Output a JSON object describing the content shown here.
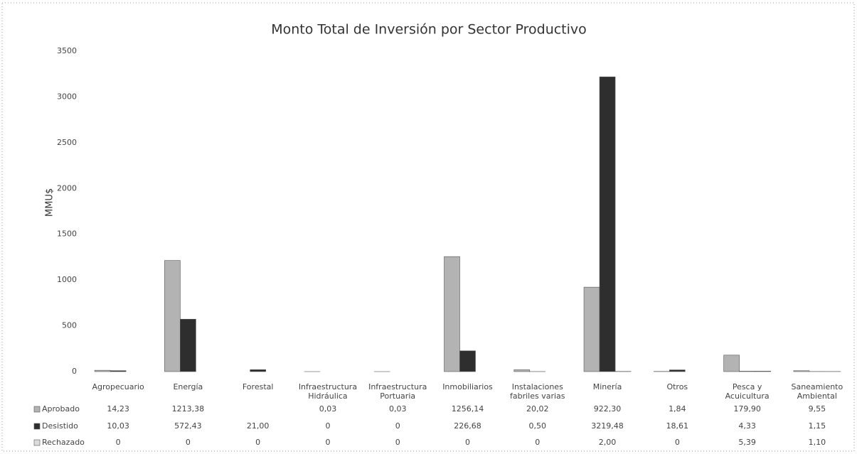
{
  "chart_data": {
    "type": "bar",
    "title": "Monto Total de Inversión por Sector Productivo",
    "y_label": "MMU$",
    "categories": [
      "Agropecuario",
      "Energía",
      "Forestal",
      "Infraestructura Hidráulica",
      "Infraestructura Portuaria",
      "Inmobiliarios",
      "Instalaciones fabriles varias",
      "Minería",
      "Otros",
      "Pesca y Acuicultura",
      "Saneamiento Ambiental"
    ],
    "series": [
      {
        "name": "Aprobado",
        "color": "#b3b3b3",
        "values": [
          14.23,
          1213.38,
          null,
          0.03,
          0.03,
          1256.14,
          20.02,
          922.3,
          1.84,
          179.9,
          9.55
        ],
        "value_labels": [
          "14,23",
          "1213,38",
          null,
          "0,03",
          "0,03",
          "1256,14",
          "20,02",
          "922,30",
          "1,84",
          "179,90",
          "9,55"
        ]
      },
      {
        "name": "Desistido",
        "color": "#2e2e2e",
        "values": [
          10.03,
          572.43,
          21.0,
          0,
          0,
          226.68,
          0.5,
          3219.48,
          18.61,
          4.33,
          1.15
        ],
        "value_labels": [
          "10,03",
          "572,43",
          "21,00",
          "0",
          "0",
          "226,68",
          "0,50",
          "3219,48",
          "18,61",
          "4,33",
          "1,15"
        ]
      },
      {
        "name": "Rechazado",
        "color": "#dcdcdc",
        "values": [
          0,
          0,
          0,
          0,
          0,
          0,
          0,
          2.0,
          0,
          5.39,
          1.1
        ],
        "value_labels": [
          "0",
          "0",
          "0",
          "0",
          "0",
          "0",
          "0",
          "2,00",
          "0",
          "5,39",
          "1,10"
        ]
      }
    ],
    "ylim": [
      0,
      3500
    ],
    "yticks": [
      0,
      500,
      1000,
      1500,
      2000,
      2500,
      3000,
      3500
    ],
    "grid": false
  }
}
